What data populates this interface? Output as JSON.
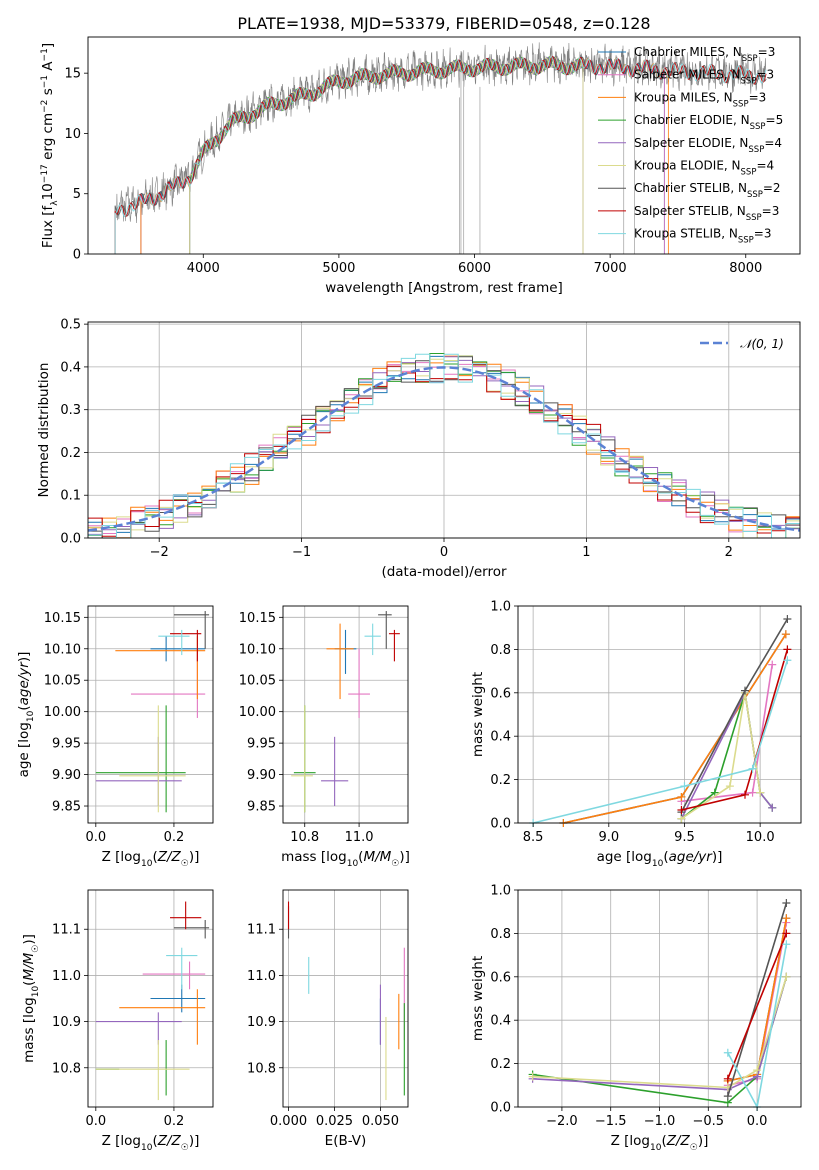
{
  "figure": {
    "title": "PLATE=1938, MJD=53379, FIBERID=0548, z=0.128"
  },
  "colors": {
    "Chabrier MILES": "#1f77b4",
    "Salpeter MILES": "#e377c2",
    "Kroupa MILES": "#ff7f0e",
    "Chabrier ELODIE": "#2ca02c",
    "Salpeter ELODIE": "#9467bd",
    "Kroupa ELODIE": "#dbdb8d",
    "Chabrier STELIB": "#555555",
    "Salpeter STELIB": "#c00000",
    "Kroupa STELIB": "#7fd8e0",
    "data": "#808080",
    "normal": "#5b82d4"
  },
  "chart_data": [
    {
      "id": "spectrum",
      "type": "line",
      "xlabel": "wavelength [Angstrom, rest frame]",
      "ylabel": "Flux [f_λ 10^-17 erg cm^-2 s^-1 A^-1]",
      "xlim": [
        3150,
        8400
      ],
      "ylim": [
        0,
        18
      ],
      "xticks": [
        4000,
        5000,
        6000,
        7000,
        8000
      ],
      "yticks": [
        0,
        5,
        10,
        15
      ],
      "legend_position": "top-right",
      "continuum": {
        "x": [
          3350,
          3500,
          3700,
          3900,
          4000,
          4200,
          4500,
          4800,
          5000,
          5300,
          5600,
          6000,
          6500,
          7000,
          7500,
          8000,
          8150
        ],
        "y": [
          3.8,
          4.2,
          5.2,
          6.5,
          8.5,
          11.0,
          12.5,
          13.5,
          14.5,
          15.0,
          15.3,
          15.6,
          15.8,
          15.7,
          15.3,
          15.0,
          14.9
        ]
      },
      "series": [
        {
          "name": "Chabrier MILES",
          "nssp": 3
        },
        {
          "name": "Salpeter MILES",
          "nssp": 3
        },
        {
          "name": "Kroupa MILES",
          "nssp": 3
        },
        {
          "name": "Chabrier ELODIE",
          "nssp": 5
        },
        {
          "name": "Salpeter ELODIE",
          "nssp": 4
        },
        {
          "name": "Kroupa ELODIE",
          "nssp": 4
        },
        {
          "name": "Chabrier STELIB",
          "nssp": 2
        },
        {
          "name": "Salpeter STELIB",
          "nssp": 3
        },
        {
          "name": "Kroupa STELIB",
          "nssp": 3
        }
      ]
    },
    {
      "id": "residuals",
      "type": "bar",
      "xlabel": "(data-model)/error",
      "ylabel": "Normed distribution",
      "xlim": [
        -2.5,
        2.5
      ],
      "ylim": [
        0,
        0.505
      ],
      "xticks": [
        -2,
        -1,
        0,
        1,
        2
      ],
      "yticks": [
        0.0,
        0.1,
        0.2,
        0.3,
        0.4,
        0.5
      ],
      "grid": true,
      "bin_width": 0.1,
      "normal_label": "N(0,1)",
      "legend_position": "top-right"
    },
    {
      "id": "age-vs-Z",
      "type": "scatter",
      "xlabel": "Z [log10(Z/Z☉)]",
      "ylabel": "age  [log10(age/yr)]",
      "xlim": [
        -0.02,
        0.3
      ],
      "ylim": [
        9.823,
        10.168
      ],
      "xticks": [
        0.0,
        0.2
      ],
      "yticks": [
        9.85,
        9.9,
        9.95,
        10.0,
        10.05,
        10.1,
        10.15
      ],
      "grid": true,
      "points": [
        {
          "series": "Chabrier MILES",
          "x": 0.18,
          "xerr": [
            0.14,
            0.28
          ],
          "y": 10.1,
          "yerr": [
            10.08,
            10.12
          ]
        },
        {
          "series": "Salpeter MILES",
          "x": 0.26,
          "xerr": [
            0.09,
            0.28
          ],
          "y": 10.028,
          "yerr": [
            9.99,
            10.1
          ]
        },
        {
          "series": "Kroupa MILES",
          "x": 0.26,
          "xerr": [
            0.05,
            0.28
          ],
          "y": 10.097,
          "yerr": [
            10.02,
            10.12
          ]
        },
        {
          "series": "Chabrier ELODIE",
          "x": 0.18,
          "xerr": [
            0.0,
            0.23
          ],
          "y": 9.903,
          "yerr": [
            9.84,
            10.01
          ]
        },
        {
          "series": "Salpeter ELODIE",
          "x": 0.16,
          "xerr": [
            0.0,
            0.22
          ],
          "y": 9.89,
          "yerr": [
            9.85,
            9.96
          ]
        },
        {
          "series": "Kroupa ELODIE",
          "x": 0.16,
          "xerr": [
            0.06,
            0.23
          ],
          "y": 9.898,
          "yerr": [
            9.84,
            10.01
          ]
        },
        {
          "series": "Chabrier STELIB",
          "x": 0.28,
          "xerr": [
            0.2,
            0.29
          ],
          "y": 10.154,
          "yerr": [
            10.1,
            10.16
          ]
        },
        {
          "series": "Salpeter STELIB",
          "x": 0.26,
          "xerr": [
            0.19,
            0.27
          ],
          "y": 10.124,
          "yerr": [
            10.08,
            10.13
          ]
        },
        {
          "series": "Kroupa STELIB",
          "x": 0.22,
          "xerr": [
            0.16,
            0.24
          ],
          "y": 10.12,
          "yerr": [
            10.09,
            10.13
          ]
        }
      ]
    },
    {
      "id": "age-vs-mass",
      "type": "scatter",
      "xlabel": "mass [log10(M/M☉)]",
      "xlim": [
        10.72,
        11.18
      ],
      "ylim": [
        9.823,
        10.168
      ],
      "xticks": [
        10.8,
        11.0
      ],
      "yticks": [
        9.85,
        9.9,
        9.95,
        10.0,
        10.05,
        10.1,
        10.15
      ],
      "grid": true,
      "points": [
        {
          "series": "Chabrier MILES",
          "x": 10.95,
          "xerr": [
            10.91,
            10.99
          ],
          "y": 10.1,
          "yerr": [
            10.06,
            10.13
          ]
        },
        {
          "series": "Salpeter MILES",
          "x": 11.0,
          "xerr": [
            10.96,
            11.04
          ],
          "y": 10.028,
          "yerr": [
            9.99,
            10.1
          ]
        },
        {
          "series": "Kroupa MILES",
          "x": 10.93,
          "xerr": [
            10.88,
            10.98
          ],
          "y": 10.1,
          "yerr": [
            10.02,
            10.14
          ]
        },
        {
          "series": "Chabrier ELODIE",
          "x": 10.8,
          "xerr": [
            10.76,
            10.84
          ],
          "y": 9.903,
          "yerr": [
            9.84,
            10.01
          ]
        },
        {
          "series": "Salpeter ELODIE",
          "x": 10.91,
          "xerr": [
            10.86,
            10.96
          ],
          "y": 9.89,
          "yerr": [
            9.85,
            9.96
          ]
        },
        {
          "series": "Kroupa ELODIE",
          "x": 10.8,
          "xerr": [
            10.75,
            10.83
          ],
          "y": 9.898,
          "yerr": [
            9.84,
            10.01
          ]
        },
        {
          "series": "Chabrier STELIB",
          "x": 11.1,
          "xerr": [
            11.07,
            11.12
          ],
          "y": 10.154,
          "yerr": [
            10.1,
            10.16
          ]
        },
        {
          "series": "Salpeter STELIB",
          "x": 11.13,
          "xerr": [
            11.11,
            11.15
          ],
          "y": 10.124,
          "yerr": [
            10.08,
            10.13
          ]
        },
        {
          "series": "Kroupa STELIB",
          "x": 11.05,
          "xerr": [
            11.02,
            11.08
          ],
          "y": 10.12,
          "yerr": [
            10.09,
            10.14
          ]
        }
      ]
    },
    {
      "id": "weight-vs-age",
      "type": "line",
      "xlabel": "age  [log10(age/yr)]",
      "ylabel": "mass weight",
      "xlim": [
        8.4,
        10.27
      ],
      "ylim": [
        0,
        1.0
      ],
      "xticks": [
        8.5,
        9.0,
        9.5,
        10.0
      ],
      "yticks": [
        0.0,
        0.2,
        0.4,
        0.6,
        0.8,
        1.0
      ],
      "grid": true,
      "series": [
        {
          "name": "Chabrier MILES",
          "x": [
            8.7,
            9.48,
            10.17
          ],
          "y": [
            0.0,
            0.12,
            0.87
          ]
        },
        {
          "name": "Salpeter MILES",
          "x": [
            9.48,
            9.95,
            10.08
          ],
          "y": [
            0.1,
            0.14,
            0.73
          ]
        },
        {
          "name": "Kroupa MILES",
          "x": [
            8.7,
            9.48,
            10.17
          ],
          "y": [
            0.0,
            0.12,
            0.87
          ]
        },
        {
          "name": "Chabrier ELODIE",
          "x": [
            9.48,
            9.7,
            9.9,
            10.0,
            10.08
          ],
          "y": [
            0.02,
            0.14,
            0.6,
            0.14,
            0.07
          ]
        },
        {
          "name": "Salpeter ELODIE",
          "x": [
            9.48,
            9.9,
            10.0,
            10.08
          ],
          "y": [
            0.02,
            0.6,
            0.14,
            0.07
          ]
        },
        {
          "name": "Kroupa ELODIE",
          "x": [
            9.48,
            9.8,
            9.9,
            10.0
          ],
          "y": [
            0.02,
            0.17,
            0.6,
            0.14
          ]
        },
        {
          "name": "Chabrier STELIB",
          "x": [
            9.48,
            9.9,
            10.18
          ],
          "y": [
            0.05,
            0.61,
            0.94
          ]
        },
        {
          "name": "Salpeter STELIB",
          "x": [
            9.48,
            9.9,
            10.18
          ],
          "y": [
            0.06,
            0.13,
            0.8
          ]
        },
        {
          "name": "Kroupa STELIB",
          "x": [
            8.5,
            9.5,
            9.95,
            10.18
          ],
          "y": [
            0.0,
            0.17,
            0.25,
            0.75
          ]
        }
      ]
    },
    {
      "id": "mass-vs-Z",
      "type": "scatter",
      "xlabel": "Z [log10(Z/Z☉)]",
      "ylabel": "mass [log10(M/M☉)]",
      "xlim": [
        -0.02,
        0.3
      ],
      "ylim": [
        10.715,
        11.185
      ],
      "xticks": [
        0.0,
        0.2
      ],
      "yticks": [
        10.8,
        10.9,
        11.0,
        11.1
      ],
      "grid": true,
      "points": [
        {
          "series": "Chabrier MILES",
          "x": 0.22,
          "xerr": [
            0.14,
            0.28
          ],
          "y": 10.95,
          "yerr": [
            10.92,
            10.98
          ]
        },
        {
          "series": "Salpeter MILES",
          "x": 0.24,
          "xerr": [
            0.12,
            0.28
          ],
          "y": 11.003,
          "yerr": [
            10.97,
            11.03
          ]
        },
        {
          "series": "Kroupa MILES",
          "x": 0.26,
          "xerr": [
            0.06,
            0.28
          ],
          "y": 10.93,
          "yerr": [
            10.85,
            10.97
          ]
        },
        {
          "series": "Chabrier ELODIE",
          "x": 0.18,
          "xerr": [
            0.0,
            0.06
          ],
          "y": 10.797,
          "yerr": [
            10.74,
            10.86
          ]
        },
        {
          "series": "Salpeter ELODIE",
          "x": 0.16,
          "xerr": [
            0.0,
            0.22
          ],
          "y": 10.9,
          "yerr": [
            10.85,
            10.92
          ]
        },
        {
          "series": "Kroupa ELODIE",
          "x": 0.16,
          "xerr": [
            0.0,
            0.24
          ],
          "y": 10.797,
          "yerr": [
            10.73,
            10.86
          ]
        },
        {
          "series": "Chabrier STELIB",
          "x": 0.28,
          "xerr": [
            0.2,
            0.29
          ],
          "y": 11.103,
          "yerr": [
            11.08,
            11.12
          ]
        },
        {
          "series": "Salpeter STELIB",
          "x": 0.23,
          "xerr": [
            0.19,
            0.27
          ],
          "y": 11.125,
          "yerr": [
            11.1,
            11.16
          ]
        },
        {
          "series": "Kroupa STELIB",
          "x": 0.22,
          "xerr": [
            0.18,
            0.26
          ],
          "y": 11.043,
          "yerr": [
            10.97,
            11.06
          ]
        }
      ]
    },
    {
      "id": "mass-vs-EBV",
      "type": "scatter",
      "xlabel": "E(B-V)",
      "xlim": [
        -0.003,
        0.065
      ],
      "ylim": [
        10.715,
        11.185
      ],
      "xticks": [
        0.0,
        0.025,
        0.05
      ],
      "xticklabels": [
        "0.000",
        "0.025",
        "0.050"
      ],
      "yticks": [
        10.8,
        10.9,
        11.0,
        11.1
      ],
      "grid": true,
      "points": [
        {
          "series": "Chabrier MILES",
          "x": 0.05,
          "y": 10.9,
          "yerr": [
            10.85,
            10.95
          ]
        },
        {
          "series": "Salpeter MILES",
          "x": 0.063,
          "y": 10.96,
          "yerr": [
            10.86,
            11.06
          ]
        },
        {
          "series": "Kroupa MILES",
          "x": 0.06,
          "y": 10.9,
          "yerr": [
            10.84,
            10.96
          ]
        },
        {
          "series": "Chabrier ELODIE",
          "x": 0.063,
          "y": 10.82,
          "yerr": [
            10.74,
            10.94
          ]
        },
        {
          "series": "Salpeter ELODIE",
          "x": 0.05,
          "y": 10.9,
          "yerr": [
            10.85,
            10.98
          ]
        },
        {
          "series": "Kroupa ELODIE",
          "x": 0.053,
          "y": 10.85,
          "yerr": [
            10.73,
            10.91
          ]
        },
        {
          "series": "Chabrier STELIB",
          "x": 0.0,
          "y": 11.12,
          "yerr": [
            11.08,
            11.15
          ]
        },
        {
          "series": "Salpeter STELIB",
          "x": 0.0,
          "y": 11.13,
          "yerr": [
            11.1,
            11.16
          ]
        },
        {
          "series": "Kroupa STELIB",
          "x": 0.011,
          "y": 11.0,
          "yerr": [
            10.96,
            11.04
          ]
        }
      ]
    },
    {
      "id": "weight-vs-Z",
      "type": "line",
      "xlabel": "Z [log10(Z/Z☉)]",
      "ylabel": "mass weight",
      "xlim": [
        -2.45,
        0.45
      ],
      "ylim": [
        0,
        1.0
      ],
      "xticks": [
        -2.0,
        -1.5,
        -1.0,
        -0.5,
        0.0
      ],
      "yticks": [
        0.0,
        0.2,
        0.4,
        0.6,
        0.8,
        1.0
      ],
      "grid": true,
      "series": [
        {
          "name": "Chabrier MILES",
          "x": [
            -0.3,
            0.0,
            0.3
          ],
          "y": [
            0.12,
            0.15,
            0.87
          ]
        },
        {
          "name": "Salpeter MILES",
          "x": [
            -0.3,
            0.0,
            0.3
          ],
          "y": [
            0.1,
            0.13,
            0.85
          ]
        },
        {
          "name": "Kroupa MILES",
          "x": [
            -0.3,
            0.0,
            0.3
          ],
          "y": [
            0.12,
            0.15,
            0.87
          ]
        },
        {
          "name": "Chabrier ELODIE",
          "x": [
            -2.3,
            -0.3,
            0.0,
            0.3
          ],
          "y": [
            0.15,
            0.02,
            0.14,
            0.6
          ]
        },
        {
          "name": "Salpeter ELODIE",
          "x": [
            -2.3,
            -0.3,
            0.0,
            0.3
          ],
          "y": [
            0.13,
            0.08,
            0.14,
            0.6
          ]
        },
        {
          "name": "Kroupa ELODIE",
          "x": [
            -2.3,
            -0.3,
            0.0,
            0.3
          ],
          "y": [
            0.14,
            0.09,
            0.17,
            0.6
          ]
        },
        {
          "name": "Chabrier STELIB",
          "x": [
            -0.3,
            0.3
          ],
          "y": [
            0.05,
            0.94
          ]
        },
        {
          "name": "Salpeter STELIB",
          "x": [
            -0.3,
            0.3
          ],
          "y": [
            0.13,
            0.8
          ]
        },
        {
          "name": "Kroupa STELIB",
          "x": [
            -0.3,
            0.0,
            0.3
          ],
          "y": [
            0.25,
            0.0,
            0.75
          ]
        }
      ]
    }
  ]
}
